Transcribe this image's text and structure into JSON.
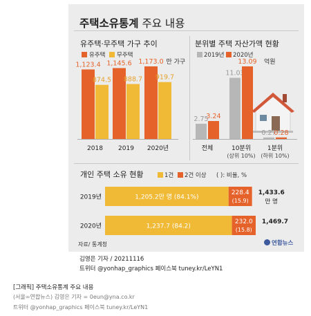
{
  "colors": {
    "owner": "#e5622a",
    "nonowner": "#f0b936",
    "y2019": "#b7b7b7",
    "y2020": "#e5622a",
    "bg": "#ececec",
    "one": "#f0b936",
    "two": "#e5622a"
  },
  "title_bold": "주택소유통계",
  "title_rest": " 주요 내용",
  "chart_data": [
    {
      "type": "bar",
      "title": "유주택·무주택 가구 추이",
      "categories": [
        "2018",
        "2019",
        "2020년"
      ],
      "unit": "만 가구",
      "series": [
        {
          "name": "유주택",
          "values": [
            1123.4,
            1145.6,
            1173.0
          ],
          "labels": [
            "1,123.4",
            "1,145.6",
            "1,173.0"
          ]
        },
        {
          "name": "무주택",
          "values": [
            874.5,
            888.7,
            919.7
          ],
          "labels": [
            "874.5",
            "888.7",
            "919.7"
          ]
        }
      ]
    },
    {
      "type": "bar",
      "title": "분위별 주택 자산가액 현황",
      "categories": [
        "전체",
        "10분위",
        "1분위"
      ],
      "subcategories": [
        "",
        "(상위 10%)",
        "(하위 10%)"
      ],
      "unit": "억원",
      "series": [
        {
          "name": "2019년",
          "values": [
            2.75,
            11.03,
            0.27
          ],
          "labels": [
            "2.75",
            "11.03",
            "0.27"
          ]
        },
        {
          "name": "2020년",
          "values": [
            3.24,
            13.09,
            0.28
          ],
          "labels": [
            "3.24",
            "13.09",
            "0.28"
          ]
        }
      ]
    },
    {
      "type": "bar",
      "stacked": true,
      "orientation": "horizontal",
      "title": "개인 주택 소유 현황",
      "categories": [
        "2019년",
        "2020년"
      ],
      "unit_note": "( ): 비율, %",
      "series": [
        {
          "name": "1건",
          "values": [
            1205.2,
            1237.7
          ],
          "labels": [
            "1,205.2만 명",
            "1,237.7"
          ],
          "pct": [
            "(84.1%)",
            "(84.2)"
          ]
        },
        {
          "name": "2건 이상",
          "values": [
            228.4,
            232.0
          ],
          "labels": [
            "228.4",
            "232.0"
          ],
          "pct": [
            "(15.9)",
            "(15.8)"
          ]
        }
      ],
      "totals": [
        "1,433.6",
        "1,469.7"
      ],
      "total_unit": "만 명"
    }
  ],
  "source": "자료/ 통계청",
  "logo": "연합뉴스",
  "credit": "김영은 기자 / 20211116",
  "credit_sns": "트위터 @yonhap_graphics  페이스북 tuney.kr/LeYN1",
  "caption_tag": "[그래픽] 주택소유통계 주요 내용",
  "caption_line1": "(서울=연합뉴스) 김영은 기자 = 0eun@yna.co.kr",
  "caption_line2": "트위터 @yonhap_graphics 페이스북 tuney.kr/LeYN1"
}
